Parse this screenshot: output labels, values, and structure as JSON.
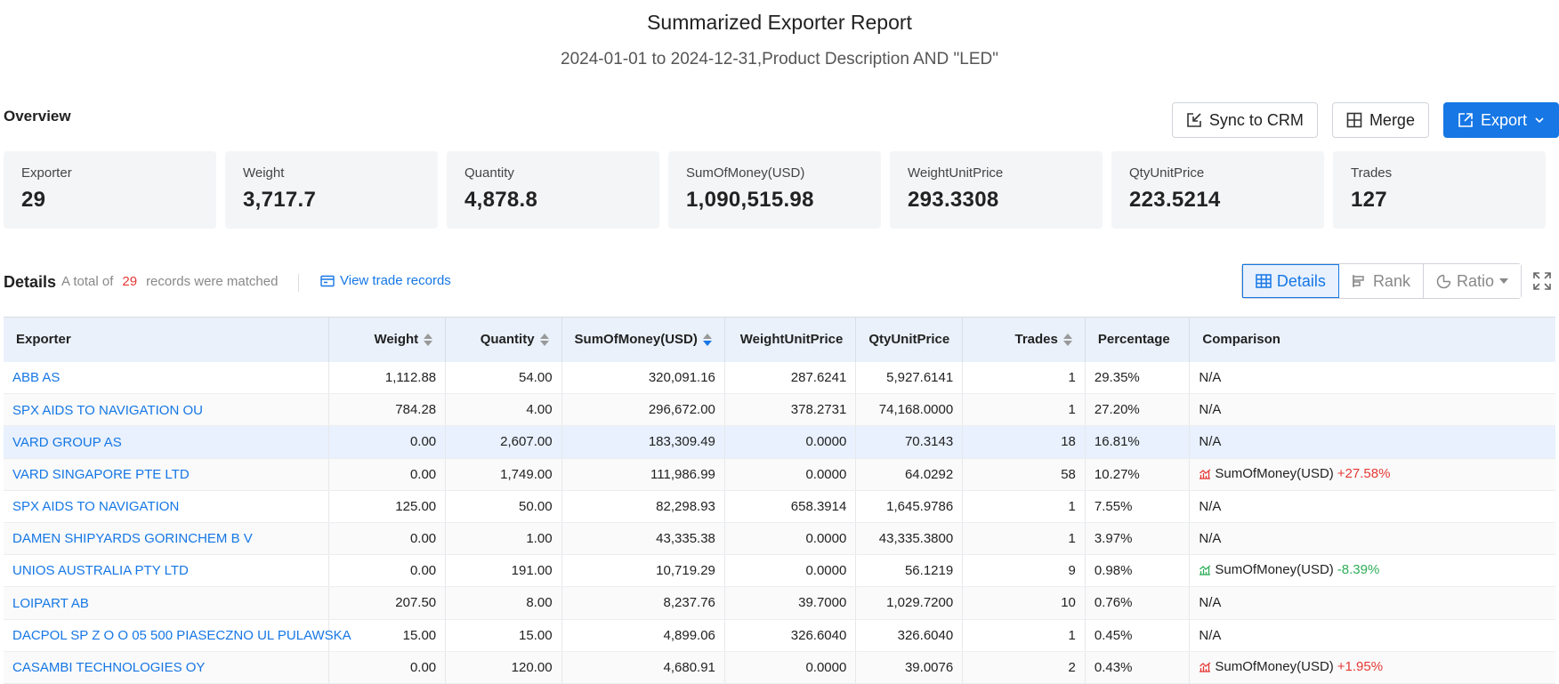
{
  "header": {
    "title": "Summarized Exporter Report",
    "subtitle": "2024-01-01 to 2024-12-31,Product Description AND \"LED\""
  },
  "overview": {
    "label": "Overview",
    "actions": {
      "sync_label": "Sync to CRM",
      "merge_label": "Merge",
      "export_label": "Export"
    },
    "stats": [
      {
        "label": "Exporter",
        "value": "29"
      },
      {
        "label": "Weight",
        "value": "3,717.7"
      },
      {
        "label": "Quantity",
        "value": "4,878.8"
      },
      {
        "label": "SumOfMoney(USD)",
        "value": "1,090,515.98"
      },
      {
        "label": "WeightUnitPrice",
        "value": "293.3308"
      },
      {
        "label": "QtyUnitPrice",
        "value": "223.5214"
      },
      {
        "label": "Trades",
        "value": "127"
      }
    ]
  },
  "details": {
    "label": "Details",
    "count_prefix": "A total of",
    "count": "29",
    "count_suffix": "records were matched",
    "view_records": "View trade records",
    "views": {
      "details": "Details",
      "rank": "Rank",
      "ratio": "Ratio"
    }
  },
  "table": {
    "columns": {
      "exporter": "Exporter",
      "weight": "Weight",
      "quantity": "Quantity",
      "money": "SumOfMoney(USD)",
      "wup": "WeightUnitPrice",
      "qup": "QtyUnitPrice",
      "trades": "Trades",
      "percentage": "Percentage",
      "comparison": "Comparison"
    },
    "rows": [
      {
        "exporter": "ABB AS",
        "weight": "1,112.88",
        "quantity": "54.00",
        "money": "320,091.16",
        "wup": "287.6241",
        "qup": "5,927.6141",
        "trades": "1",
        "percentage": "29.35%",
        "comparison": "N/A",
        "cmp_label": "",
        "cmp_delta": "",
        "trend": "none"
      },
      {
        "exporter": "SPX AIDS TO NAVIGATION OU",
        "weight": "784.28",
        "quantity": "4.00",
        "money": "296,672.00",
        "wup": "378.2731",
        "qup": "74,168.0000",
        "trades": "1",
        "percentage": "27.20%",
        "comparison": "N/A",
        "cmp_label": "",
        "cmp_delta": "",
        "trend": "none"
      },
      {
        "exporter": "VARD GROUP AS",
        "weight": "0.00",
        "quantity": "2,607.00",
        "money": "183,309.49",
        "wup": "0.0000",
        "qup": "70.3143",
        "trades": "18",
        "percentage": "16.81%",
        "comparison": "N/A",
        "cmp_label": "",
        "cmp_delta": "",
        "trend": "none"
      },
      {
        "exporter": "VARD SINGAPORE PTE LTD",
        "weight": "0.00",
        "quantity": "1,749.00",
        "money": "111,986.99",
        "wup": "0.0000",
        "qup": "64.0292",
        "trades": "58",
        "percentage": "10.27%",
        "comparison": "",
        "cmp_label": "SumOfMoney(USD)",
        "cmp_delta": "+27.58%",
        "trend": "up"
      },
      {
        "exporter": "SPX AIDS TO NAVIGATION",
        "weight": "125.00",
        "quantity": "50.00",
        "money": "82,298.93",
        "wup": "658.3914",
        "qup": "1,645.9786",
        "trades": "1",
        "percentage": "7.55%",
        "comparison": "N/A",
        "cmp_label": "",
        "cmp_delta": "",
        "trend": "none"
      },
      {
        "exporter": "DAMEN SHIPYARDS GORINCHEM B V",
        "weight": "0.00",
        "quantity": "1.00",
        "money": "43,335.38",
        "wup": "0.0000",
        "qup": "43,335.3800",
        "trades": "1",
        "percentage": "3.97%",
        "comparison": "N/A",
        "cmp_label": "",
        "cmp_delta": "",
        "trend": "none"
      },
      {
        "exporter": "UNIOS AUSTRALIA PTY LTD",
        "weight": "0.00",
        "quantity": "191.00",
        "money": "10,719.29",
        "wup": "0.0000",
        "qup": "56.1219",
        "trades": "9",
        "percentage": "0.98%",
        "comparison": "",
        "cmp_label": "SumOfMoney(USD)",
        "cmp_delta": "-8.39%",
        "trend": "down"
      },
      {
        "exporter": "LOIPART AB",
        "weight": "207.50",
        "quantity": "8.00",
        "money": "8,237.76",
        "wup": "39.7000",
        "qup": "1,029.7200",
        "trades": "10",
        "percentage": "0.76%",
        "comparison": "N/A",
        "cmp_label": "",
        "cmp_delta": "",
        "trend": "none"
      },
      {
        "exporter": "DACPOL SP Z O O 05 500 PIASECZNO UL PULAWSKA",
        "weight": "15.00",
        "quantity": "15.00",
        "money": "4,899.06",
        "wup": "326.6040",
        "qup": "326.6040",
        "trades": "1",
        "percentage": "0.45%",
        "comparison": "N/A",
        "cmp_label": "",
        "cmp_delta": "",
        "trend": "none"
      },
      {
        "exporter": "CASAMBI TECHNOLOGIES OY",
        "weight": "0.00",
        "quantity": "120.00",
        "money": "4,680.91",
        "wup": "0.0000",
        "qup": "39.0076",
        "trades": "2",
        "percentage": "0.43%",
        "comparison": "",
        "cmp_label": "SumOfMoney(USD)",
        "cmp_delta": "+1.95%",
        "trend": "up"
      }
    ]
  },
  "colors": {
    "accent": "#1677e5",
    "up": "#e53935",
    "down": "#2eae58"
  }
}
